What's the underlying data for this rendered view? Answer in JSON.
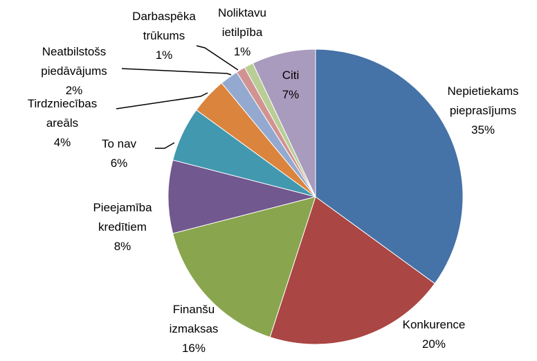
{
  "chart_data": {
    "type": "pie",
    "categories": [
      "Nepietiekams pieprasījums",
      "Konkurence",
      "Finanšu izmaksas",
      "Pieejamība kredītiem",
      "To nav",
      "Tirdzniecības areāls",
      "Neatbilstošs piedāvājums",
      "Darbaspēka trūkums",
      "Noliktavu ietilpība",
      "Citi"
    ],
    "values": [
      35,
      20,
      16,
      8,
      6,
      4,
      2,
      1,
      1,
      7
    ],
    "value_labels": [
      "35%",
      "20%",
      "16%",
      "8%",
      "6%",
      "4%",
      "2%",
      "1%",
      "1%",
      "7%"
    ],
    "colors": [
      "#4572a7",
      "#aa4643",
      "#89a54e",
      "#71588f",
      "#4198af",
      "#db843d",
      "#93a9cf",
      "#d19392",
      "#b9cd96",
      "#a99bbd"
    ]
  }
}
